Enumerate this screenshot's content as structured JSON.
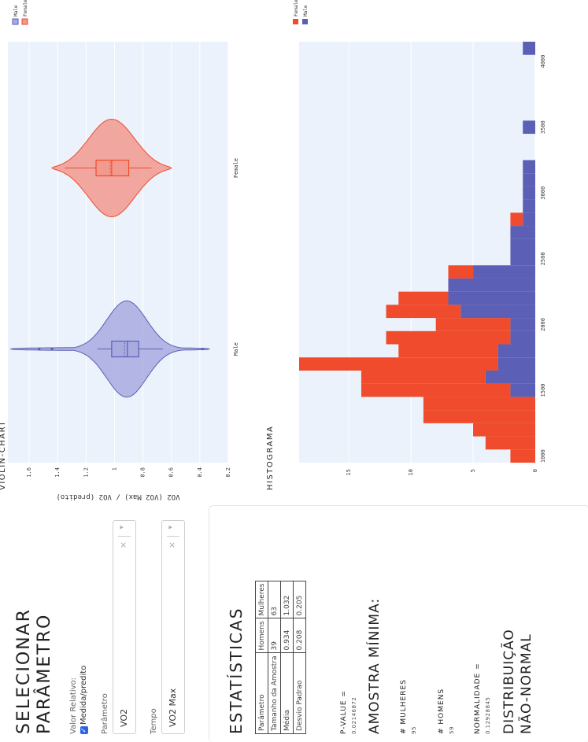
{
  "select_param": {
    "title": "SELECIONAR PARÂMETRO",
    "valor_relativo_label": "Valor Relativo:",
    "checkbox_label": "Medida/predito",
    "parametro_label": "Parâmetro",
    "parametro_value": "VO2",
    "tempo_label": "Tempo",
    "tempo_value": "VO2 Max",
    "clear_glyph": "×",
    "caret_glyph": "▾",
    "check_glyph": "✓"
  },
  "stats": {
    "title": "ESTATÍSTICAS",
    "table": {
      "headers": [
        "Parâmetro",
        "Homens",
        "Mulheres"
      ],
      "rows": [
        [
          "Tamanho da Amostra",
          "39",
          "63"
        ],
        [
          "Média",
          "0.934",
          "1.032"
        ],
        [
          "Desvio Padrao",
          "0.208",
          "0.205"
        ]
      ]
    },
    "pvalue_label": "P-VALUE =",
    "pvalue": "0.02146872",
    "amostra_title": "AMOSTRA MÍNIMA:",
    "mulheres_label": "# MULHERES",
    "mulheres_value": "95",
    "homens_label": "# HOMENS",
    "homens_value": "59",
    "normalidade_label": "NORMALIDADE =",
    "normalidade_value": "0.12928845",
    "distribuicao": "DISTRIBUIÇÃO NÃO-NORMAL"
  },
  "colors": {
    "male": "#5b5fb5",
    "female": "#ef4b2c",
    "male_violin": "#a9abdf",
    "female_violin": "#f29a8e",
    "plot_bg": "#ecf2fb",
    "grid": "#ffffff"
  },
  "chart_data": [
    {
      "type": "violin",
      "title": "VIOLIN-CHART",
      "ylabel": "VO2 (VO2 Max) / VO2 (predito)",
      "xlabel": "",
      "categories": [
        "Male",
        "Female"
      ],
      "ylim": [
        0.2,
        1.75
      ],
      "yticks": [
        0.2,
        0.4,
        0.6,
        0.8,
        1,
        1.2,
        1.4,
        1.6
      ],
      "legend": [
        "Male",
        "Female"
      ],
      "legend_position": "top-right",
      "series": [
        {
          "name": "Male",
          "min": 0.66,
          "q1": 0.83,
          "median": 0.91,
          "mean": 0.93,
          "q3": 1.02,
          "max": 1.12,
          "outliers": [
            1.44,
            1.53,
            0.38
          ],
          "violin_min": 0.33,
          "violin_max": 1.73
        },
        {
          "name": "Female",
          "min": 0.74,
          "q1": 0.9,
          "median": 1.02,
          "mean": 1.03,
          "q3": 1.13,
          "max": 1.35,
          "outliers": [],
          "violin_min": 0.6,
          "violin_max": 1.44
        }
      ]
    },
    {
      "type": "bar",
      "title": "HISTOGRAMA",
      "xlabel": "",
      "ylabel": "",
      "bin_width": 100,
      "x_start": 950,
      "xlim": [
        950,
        4150
      ],
      "xticks": [
        1000,
        1500,
        2000,
        2500,
        3000,
        3500,
        4000
      ],
      "ylim": [
        0,
        19
      ],
      "yticks": [
        0,
        5,
        10,
        15
      ],
      "legend": [
        "Female",
        "Male"
      ],
      "legend_position": "top-right",
      "series": [
        {
          "name": "Male",
          "values": [
            0,
            0,
            0,
            0,
            0,
            2,
            4,
            3,
            3,
            2,
            2,
            6,
            7,
            7,
            5,
            2,
            2,
            2,
            1,
            1,
            1,
            1,
            1,
            0,
            0,
            1,
            0,
            0,
            0,
            0,
            0,
            1
          ]
        },
        {
          "name": "Female",
          "values": [
            2,
            4,
            5,
            9,
            9,
            12,
            10,
            16,
            8,
            10,
            6,
            6,
            4,
            0,
            2,
            0,
            0,
            0,
            1,
            0,
            0,
            0,
            0,
            0,
            0,
            0,
            0,
            0,
            0,
            0,
            0,
            0
          ]
        }
      ]
    }
  ]
}
